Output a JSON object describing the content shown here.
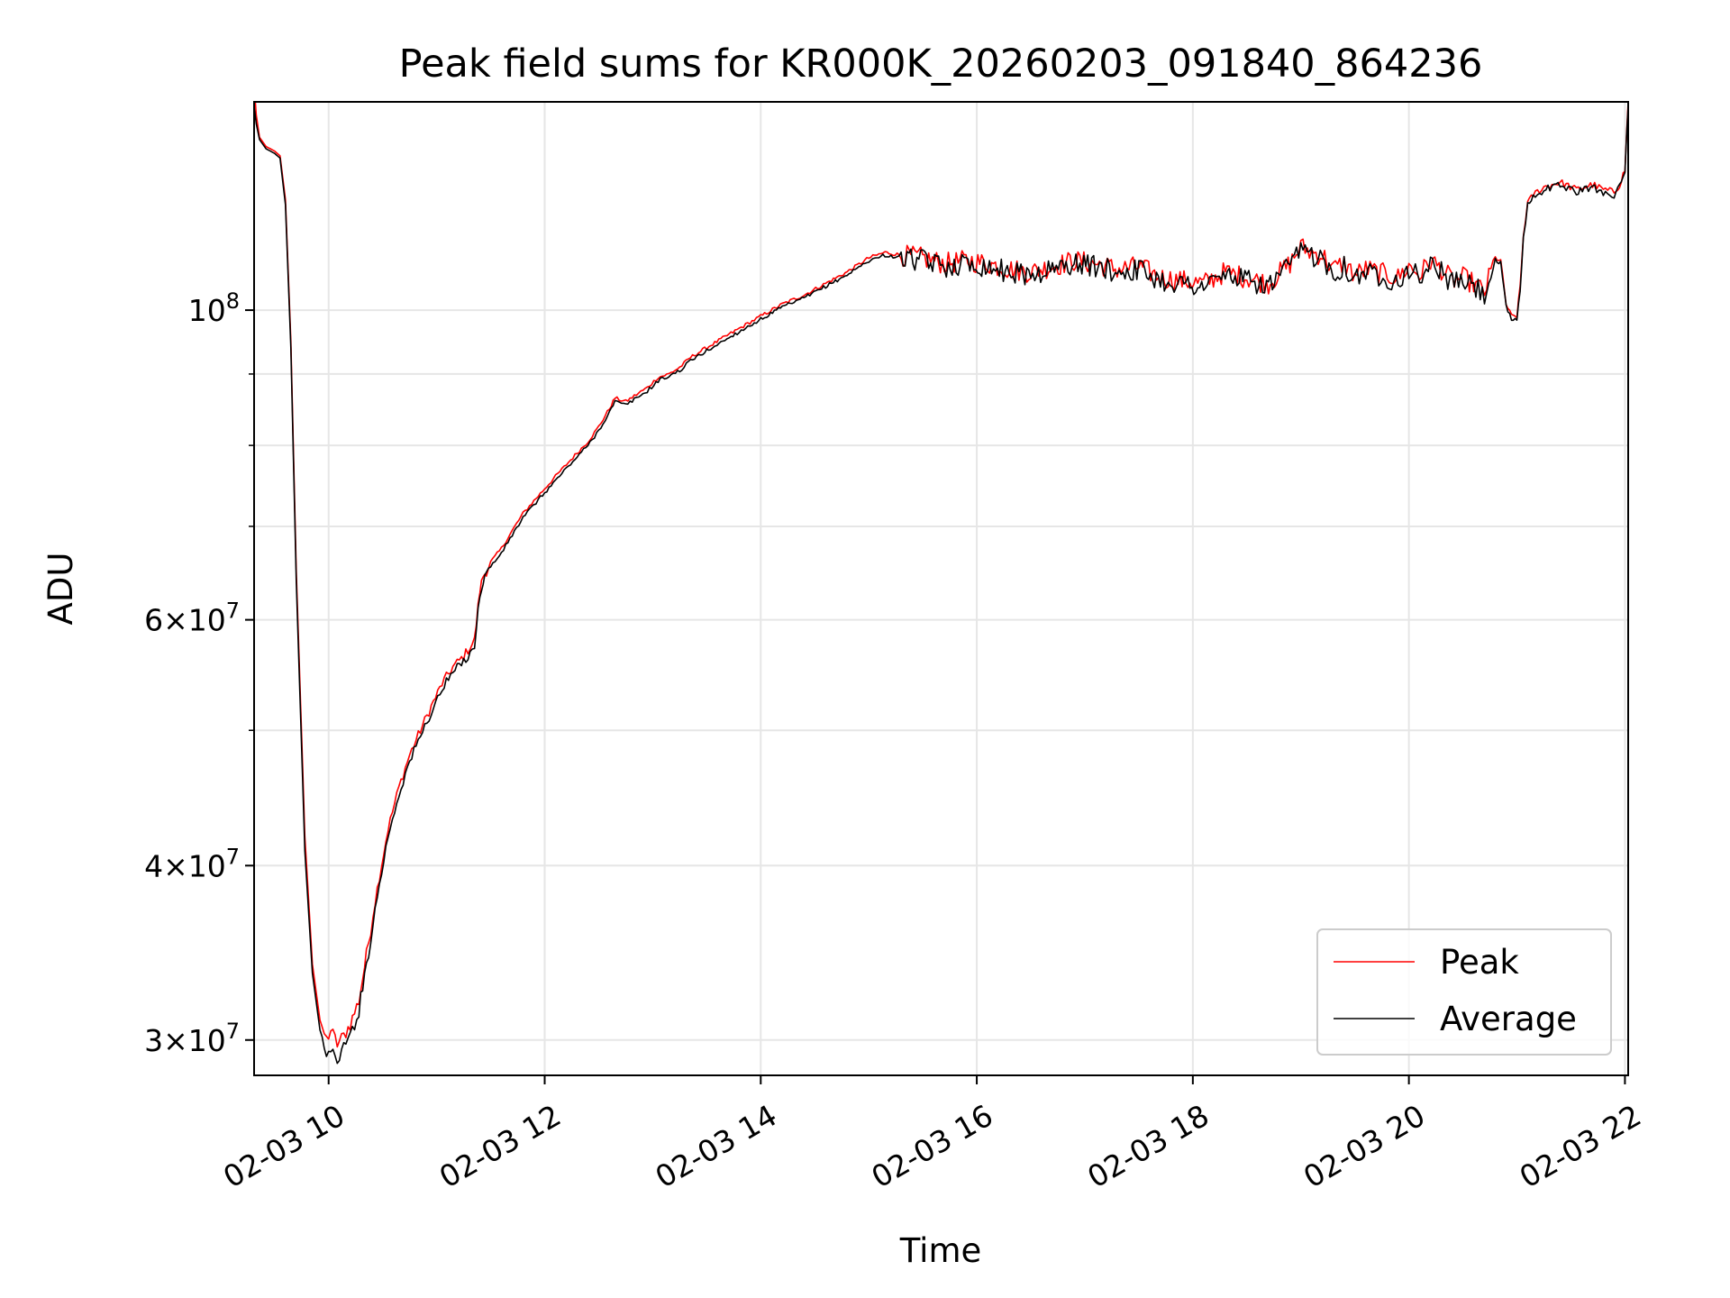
{
  "colors": {
    "peak": "#ff0000",
    "average": "#000000",
    "grid": "#e6e6e6",
    "axis": "#000000"
  },
  "chart_data": {
    "type": "line",
    "title": "Peak field sums for KR000K_20260203_091840_864236",
    "xlabel": "Time",
    "ylabel": "ADU",
    "yscale": "log",
    "xlim": [
      9.31,
      22.03
    ],
    "ylim": [
      28300000,
      141000000
    ],
    "grid": true,
    "legend_position": "lower-right",
    "x_ticks": [
      {
        "value": 10,
        "label": "02-03 10"
      },
      {
        "value": 12,
        "label": "02-03 12"
      },
      {
        "value": 14,
        "label": "02-03 14"
      },
      {
        "value": 16,
        "label": "02-03 16"
      },
      {
        "value": 18,
        "label": "02-03 18"
      },
      {
        "value": 20,
        "label": "02-03 20"
      },
      {
        "value": 22,
        "label": "02-03 22"
      }
    ],
    "y_ticks": [
      {
        "value": 30000000,
        "base": "3",
        "exp": "7"
      },
      {
        "value": 40000000,
        "base": "4",
        "exp": "7"
      },
      {
        "value": 60000000,
        "base": "6",
        "exp": "7"
      },
      {
        "value": 100000000,
        "base": "",
        "exp": "8"
      }
    ],
    "y_minor_ticks": [
      50000000,
      70000000,
      80000000,
      90000000
    ],
    "series": [
      {
        "name": "Peak",
        "x": [
          9.31,
          9.33,
          9.36,
          9.42,
          9.5,
          9.55,
          9.6,
          9.65,
          9.7,
          9.78,
          9.85,
          9.92,
          9.98,
          10.02,
          10.08,
          10.14,
          10.2,
          10.28,
          10.35,
          10.45,
          10.55,
          10.65,
          10.75,
          10.85,
          10.95,
          11.05,
          11.15,
          11.25,
          11.35,
          11.4,
          11.43,
          11.46,
          11.5,
          11.6,
          11.7,
          11.8,
          11.9,
          12.0,
          12.1,
          12.2,
          12.3,
          12.4,
          12.5,
          12.6,
          12.65,
          12.75,
          12.85,
          12.95,
          13.05,
          13.15,
          13.25,
          13.35,
          13.5,
          13.65,
          13.8,
          13.9,
          14.0,
          14.2,
          14.4,
          14.6,
          14.8,
          15.0,
          15.15,
          15.3,
          15.5,
          15.7,
          15.9,
          16.1,
          16.3,
          16.5,
          16.7,
          16.9,
          17.1,
          17.3,
          17.5,
          17.7,
          17.9,
          18.1,
          18.3,
          18.5,
          18.7,
          18.9,
          19.0,
          19.1,
          19.2,
          19.3,
          19.4,
          19.5,
          19.6,
          19.7,
          19.8,
          19.9,
          20.0,
          20.1,
          20.2,
          20.3,
          20.4,
          20.5,
          20.6,
          20.7,
          20.8,
          20.85,
          20.9,
          20.95,
          21.0,
          21.03,
          21.06,
          21.1,
          21.15,
          21.25,
          21.4,
          21.55,
          21.7,
          21.8,
          21.9,
          21.95,
          22.0,
          22.03
        ],
        "y": [
          145000000,
          138000000,
          133000000,
          131000000,
          130000000,
          129000000,
          120000000,
          95000000,
          65000000,
          42000000,
          34000000,
          31000000,
          30000000,
          30500000,
          29800000,
          30200000,
          30800000,
          32000000,
          34500000,
          38500000,
          42500000,
          45500000,
          48000000,
          50000000,
          52000000,
          54000000,
          55500000,
          56500000,
          58000000,
          63000000,
          64500000,
          65000000,
          66000000,
          67500000,
          69500000,
          71500000,
          73000000,
          74500000,
          76000000,
          77500000,
          79000000,
          80500000,
          82500000,
          85000000,
          86500000,
          86000000,
          87000000,
          88000000,
          89500000,
          90000000,
          91000000,
          92500000,
          94000000,
          95500000,
          97000000,
          98000000,
          99000000,
          101000000,
          102500000,
          104500000,
          106500000,
          109000000,
          110000000,
          109500000,
          109000000,
          108000000,
          108500000,
          108000000,
          107000000,
          106500000,
          107500000,
          108500000,
          108000000,
          107000000,
          107500000,
          105500000,
          105000000,
          104500000,
          106500000,
          105500000,
          104500000,
          108000000,
          111000000,
          110000000,
          109500000,
          107000000,
          108000000,
          106000000,
          107000000,
          106500000,
          106000000,
          105500000,
          107500000,
          106000000,
          108500000,
          107000000,
          105000000,
          105500000,
          104500000,
          103000000,
          109000000,
          108500000,
          101000000,
          99000000,
          99000000,
          104000000,
          113000000,
          119500000,
          121000000,
          122500000,
          123500000,
          122000000,
          123000000,
          122000000,
          121500000,
          123000000,
          126000000,
          141000000
        ]
      },
      {
        "name": "Average",
        "x": [
          9.31,
          9.33,
          9.36,
          9.42,
          9.5,
          9.55,
          9.6,
          9.65,
          9.7,
          9.78,
          9.85,
          9.92,
          9.98,
          10.02,
          10.08,
          10.14,
          10.2,
          10.28,
          10.35,
          10.45,
          10.55,
          10.65,
          10.75,
          10.85,
          10.95,
          11.05,
          11.15,
          11.25,
          11.35,
          11.4,
          11.43,
          11.46,
          11.5,
          11.6,
          11.7,
          11.8,
          11.9,
          12.0,
          12.1,
          12.2,
          12.3,
          12.4,
          12.5,
          12.6,
          12.65,
          12.75,
          12.85,
          12.95,
          13.05,
          13.15,
          13.25,
          13.35,
          13.5,
          13.65,
          13.8,
          13.9,
          14.0,
          14.2,
          14.4,
          14.6,
          14.8,
          15.0,
          15.15,
          15.3,
          15.5,
          15.7,
          15.9,
          16.1,
          16.3,
          16.5,
          16.7,
          16.9,
          17.1,
          17.3,
          17.5,
          17.7,
          17.9,
          18.1,
          18.3,
          18.5,
          18.7,
          18.9,
          19.0,
          19.1,
          19.2,
          19.3,
          19.4,
          19.5,
          19.6,
          19.7,
          19.8,
          19.9,
          20.0,
          20.1,
          20.2,
          20.3,
          20.4,
          20.5,
          20.6,
          20.7,
          20.8,
          20.85,
          20.9,
          20.95,
          21.0,
          21.03,
          21.06,
          21.1,
          21.15,
          21.25,
          21.4,
          21.55,
          21.7,
          21.8,
          21.9,
          21.95,
          22.0,
          22.03
        ],
        "y": [
          140000000,
          136000000,
          132500000,
          130500000,
          129500000,
          128500000,
          119000000,
          94000000,
          64000000,
          41000000,
          33500000,
          30500000,
          29500000,
          29300000,
          29100000,
          29600000,
          30200000,
          31500000,
          34000000,
          38000000,
          42000000,
          45000000,
          47500000,
          49500000,
          51500000,
          53500000,
          55000000,
          56000000,
          57500000,
          62500000,
          64000000,
          64800000,
          65500000,
          67000000,
          69000000,
          71000000,
          72500000,
          74000000,
          75500000,
          77000000,
          78500000,
          80000000,
          82000000,
          84500000,
          86000000,
          85500000,
          86500000,
          87500000,
          89000000,
          89700000,
          90500000,
          92000000,
          93500000,
          95000000,
          96500000,
          97500000,
          98500000,
          100500000,
          102000000,
          104000000,
          106000000,
          108500000,
          109500000,
          109000000,
          108500000,
          107500000,
          108000000,
          107500000,
          106500000,
          106000000,
          107000000,
          108000000,
          107500000,
          106500000,
          107000000,
          105000000,
          104500000,
          104000000,
          106000000,
          105000000,
          104000000,
          107500000,
          110500000,
          109500000,
          109000000,
          106500000,
          107500000,
          105500000,
          106500000,
          106000000,
          105500000,
          105000000,
          107000000,
          105500000,
          108000000,
          106500000,
          104500000,
          105000000,
          104000000,
          102500000,
          108500000,
          108000000,
          100500000,
          98500000,
          98500000,
          103500000,
          112500000,
          119000000,
          120500000,
          122000000,
          123000000,
          121500000,
          122500000,
          121500000,
          121000000,
          122500000,
          125500000,
          140000000
        ]
      }
    ]
  }
}
